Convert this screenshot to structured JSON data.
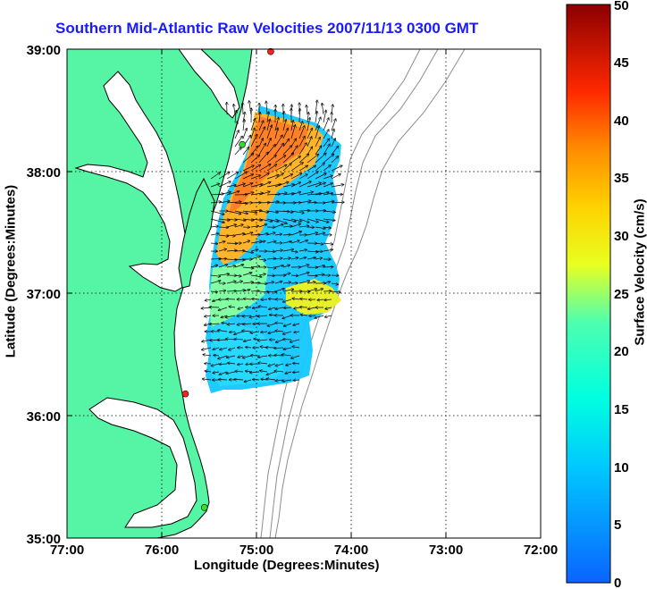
{
  "title": "Southern Mid-Atlantic Raw Velocities 2007/11/13 0300 GMT",
  "xlabel": "Longitude (Degrees:Minutes)",
  "ylabel": "Latitude (Degrees:Minutes)",
  "colorbar_label": "Surface Velocity (cm/s)",
  "x_ticks": [
    "77:00",
    "76:00",
    "75:00",
    "74:00",
    "73:00",
    "72:00"
  ],
  "y_ticks": [
    "35:00",
    "36:00",
    "37:00",
    "38:00",
    "39:00"
  ],
  "colorbar_ticks": [
    "0",
    "5",
    "10",
    "15",
    "20",
    "25",
    "30",
    "35",
    "40",
    "45",
    "50"
  ],
  "colors": {
    "land": "#55f5a5",
    "coastline": "#000000",
    "bathymetry": "#8c8c8c",
    "title": "#1a1aff",
    "station": "#ff2020",
    "station_alt": "#33dd33"
  },
  "chart_data": {
    "type": "map",
    "projection": "lon-lat",
    "xlim": [
      -77.0,
      -72.0
    ],
    "ylim": [
      35.0,
      39.0
    ],
    "grid": true,
    "colorbar": {
      "min": 0,
      "max": 50,
      "unit": "cm/s",
      "colormap": "jet"
    },
    "stations": [
      {
        "lon": -74.85,
        "lat": 38.98,
        "color": "red"
      },
      {
        "lon": -75.15,
        "lat": 38.22,
        "color": "green"
      },
      {
        "lon": -75.75,
        "lat": 36.18,
        "color": "red"
      },
      {
        "lon": -75.55,
        "lat": 35.25,
        "color": "green"
      }
    ]
  }
}
